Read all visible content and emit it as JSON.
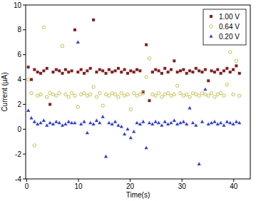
{
  "chart_data": {
    "type": "scatter",
    "x_label": "Time(s)",
    "y_label": "Current (μA)",
    "xlim": [
      -0.2,
      43.2
    ],
    "ylim": [
      -4,
      10
    ],
    "xticks": [
      0,
      10,
      20,
      30,
      40
    ],
    "yticks": [
      -4,
      -2,
      0,
      2,
      4,
      6,
      8,
      10
    ],
    "legend": "top-right",
    "grid": false,
    "x": [
      0.3,
      0.9,
      1.5,
      2.1,
      2.7,
      3.3,
      3.9,
      4.5,
      5.1,
      5.7,
      6.3,
      6.9,
      7.5,
      8.1,
      8.7,
      9.3,
      9.9,
      10.5,
      11.1,
      11.7,
      12.3,
      12.9,
      13.5,
      14.1,
      14.7,
      15.3,
      15.9,
      16.5,
      17.1,
      17.7,
      18.3,
      18.9,
      19.5,
      20.1,
      20.7,
      21.3,
      21.9,
      22.5,
      23.1,
      23.7,
      24.3,
      24.9,
      25.5,
      26.1,
      26.7,
      27.3,
      27.9,
      28.5,
      29.1,
      29.7,
      30.3,
      30.9,
      31.5,
      32.1,
      32.7,
      33.3,
      33.9,
      34.5,
      35.1,
      35.7,
      36.3,
      36.9,
      37.5,
      38.1,
      38.7,
      39.3,
      39.9,
      40.5,
      41.1
    ],
    "series": [
      {
        "name": "1.00 V",
        "color": "#8b1a1a",
        "marker": "square",
        "values": [
          5.0,
          4.0,
          4.8,
          4.6,
          4.5,
          4.7,
          4.9,
          2.0,
          4.6,
          4.8,
          4.7,
          4.5,
          4.8,
          4.6,
          4.7,
          8.0,
          4.6,
          4.8,
          4.5,
          4.7,
          4.9,
          8.8,
          4.6,
          4.8,
          4.7,
          4.5,
          4.8,
          4.6,
          4.7,
          4.9,
          4.6,
          4.8,
          4.5,
          4.7,
          4.6,
          4.8,
          4.7,
          3.0,
          6.8,
          2.3,
          4.6,
          4.8,
          4.7,
          4.5,
          4.9,
          4.6,
          4.8,
          5.5,
          4.6,
          4.7,
          4.8,
          4.5,
          4.7,
          4.6,
          4.9,
          4.7,
          4.6,
          4.8,
          3.9,
          4.7,
          4.6,
          4.8,
          4.5,
          4.7,
          4.9,
          4.6,
          4.8,
          5.1,
          4.5
        ]
      },
      {
        "name": "0.64 V",
        "color": "#c3c34a",
        "marker": "circle",
        "values": [
          4.0,
          2.9,
          -1.3,
          2.7,
          2.8,
          8.2,
          2.6,
          2.9,
          2.8,
          2.7,
          2.9,
          6.7,
          2.8,
          2.6,
          2.9,
          2.7,
          1.8,
          2.8,
          2.9,
          2.7,
          2.8,
          3.4,
          2.6,
          2.9,
          1.9,
          2.8,
          2.7,
          2.9,
          2.8,
          2.6,
          2.9,
          2.7,
          2.8,
          1.6,
          2.9,
          2.7,
          2.8,
          2.9,
          4.2,
          5.7,
          2.8,
          2.7,
          2.9,
          2.6,
          2.8,
          2.9,
          2.7,
          2.8,
          3.5,
          2.9,
          2.7,
          2.8,
          2.6,
          2.9,
          2.8,
          2.7,
          2.9,
          2.8,
          2.7,
          2.9,
          2.6,
          2.8,
          2.9,
          2.7,
          3.6,
          6.2,
          2.8,
          5.5,
          2.7
        ]
      },
      {
        "name": "0.20 V",
        "color": "#2a3cf0",
        "marker": "triangle",
        "values": [
          1.5,
          0.9,
          0.6,
          0.4,
          0.5,
          0.7,
          0.3,
          0.5,
          0.4,
          0.6,
          0.5,
          0.3,
          0.4,
          0.6,
          0.5,
          0.5,
          7.0,
          0.4,
          0.6,
          -0.3,
          0.5,
          0.4,
          0.7,
          0.5,
          1.0,
          -2.2,
          0.5,
          0.4,
          0.6,
          0.3,
          0.2,
          -0.4,
          0.0,
          -0.7,
          -0.2,
          0.5,
          0.4,
          0.6,
          -1.5,
          0.5,
          0.4,
          0.6,
          0.5,
          0.3,
          0.6,
          0.4,
          0.5,
          0.7,
          0.4,
          0.5,
          0.6,
          0.4,
          1.7,
          0.5,
          0.3,
          -2.8,
          0.6,
          3.2,
          0.4,
          0.5,
          0.6,
          0.4,
          0.5,
          0.3,
          0.6,
          0.5,
          0.4,
          0.6,
          0.5
        ]
      }
    ]
  }
}
